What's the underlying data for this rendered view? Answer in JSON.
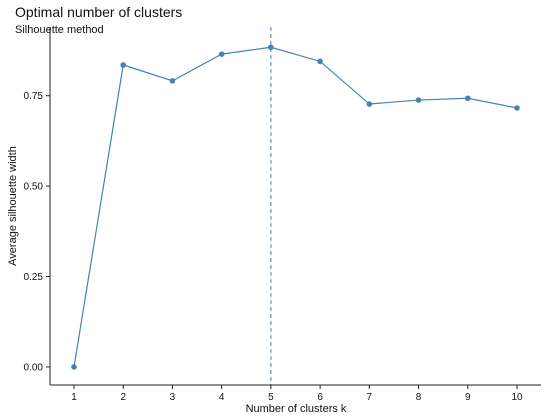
{
  "chart_data": {
    "type": "line",
    "title": "Optimal number of clusters",
    "subtitle": "Silhouette method",
    "xlabel": "Number of clusters k",
    "ylabel": "Average silhouette width",
    "x": [
      1,
      2,
      3,
      4,
      5,
      6,
      7,
      8,
      9,
      10
    ],
    "x_tick_labels": [
      "1",
      "2",
      "3",
      "4",
      "5",
      "6",
      "7",
      "8",
      "9",
      "10"
    ],
    "series": [
      {
        "values": [
          0.0,
          0.835,
          0.791,
          0.865,
          0.884,
          0.845,
          0.727,
          0.738,
          0.743,
          0.716
        ]
      }
    ],
    "y_ticks": [
      0.0,
      0.25,
      0.5,
      0.75
    ],
    "y_tick_labels": [
      "0.00",
      "0.25",
      "0.50",
      "0.75"
    ],
    "ylim": [
      -0.05,
      0.94
    ],
    "optimal_k": 5,
    "grid": false,
    "line_color": "#4682B4",
    "marker_color": "#4682B4",
    "reference_line_color": "#4682B4"
  }
}
